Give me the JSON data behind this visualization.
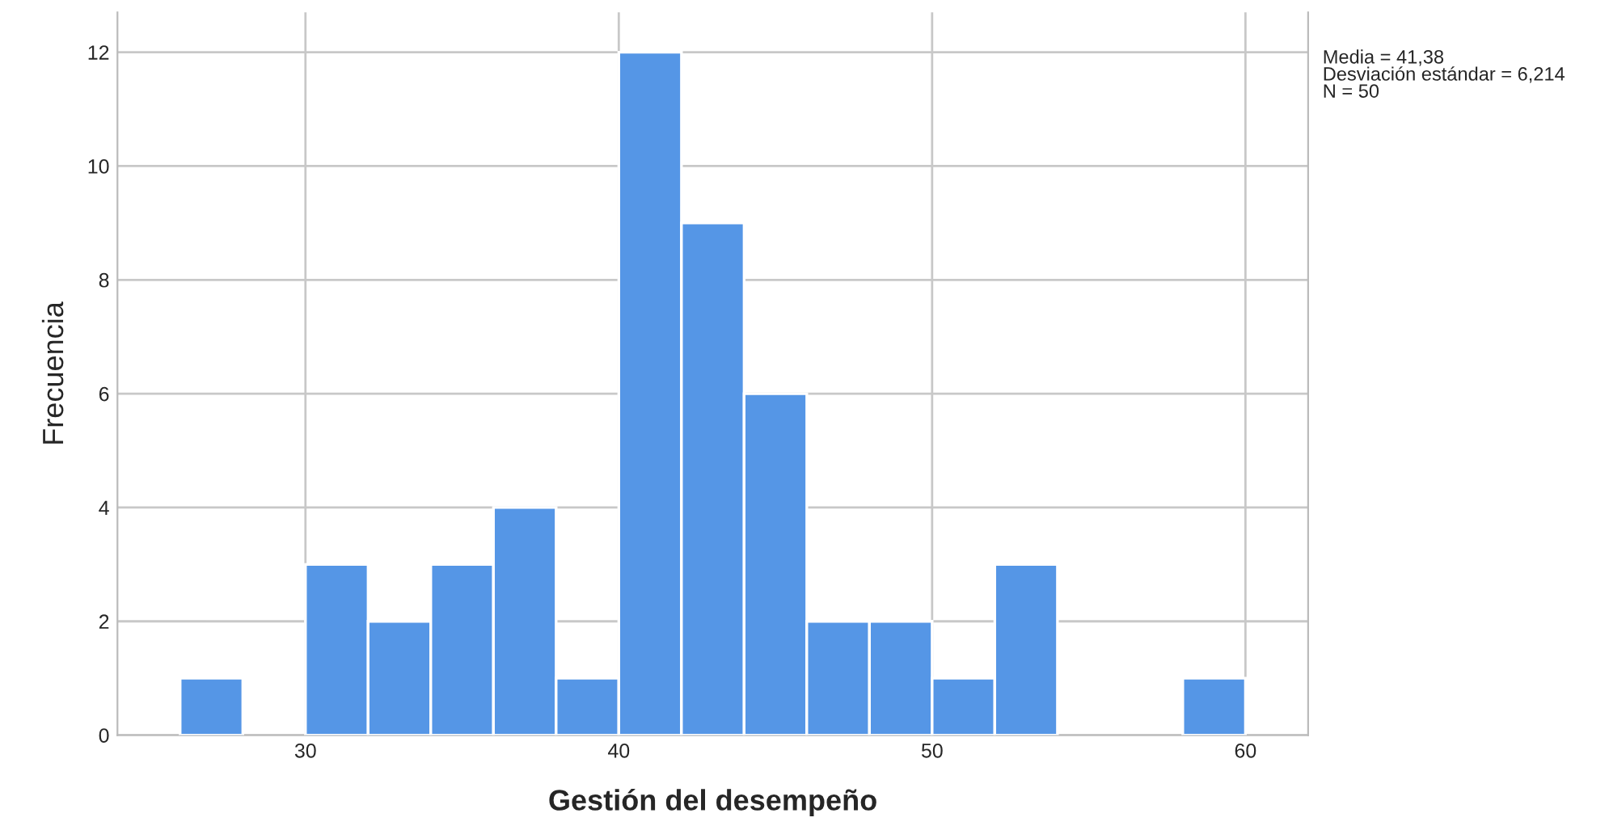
{
  "chart_data": {
    "type": "histogram",
    "xlabel": "Gestión del desempeño",
    "ylabel": "Frecuencia",
    "bins": [
      26,
      28,
      30,
      32,
      34,
      36,
      38,
      40,
      42,
      44,
      46,
      48,
      50,
      52,
      54,
      56,
      58,
      60
    ],
    "values": [
      1,
      0,
      3,
      2,
      3,
      4,
      1,
      12,
      9,
      6,
      2,
      2,
      1,
      3,
      0,
      0,
      1
    ],
    "color": "#5596e6",
    "xlim": [
      24,
      62
    ],
    "xticks": [
      30,
      40,
      50,
      60
    ],
    "ylim": [
      0,
      12.7
    ],
    "yticks": [
      0,
      2,
      4,
      6,
      8,
      10,
      12
    ],
    "grid": true,
    "annotations": [
      "Media = 41,38\nDesviación estándar = 6,214\nN = 50"
    ]
  }
}
